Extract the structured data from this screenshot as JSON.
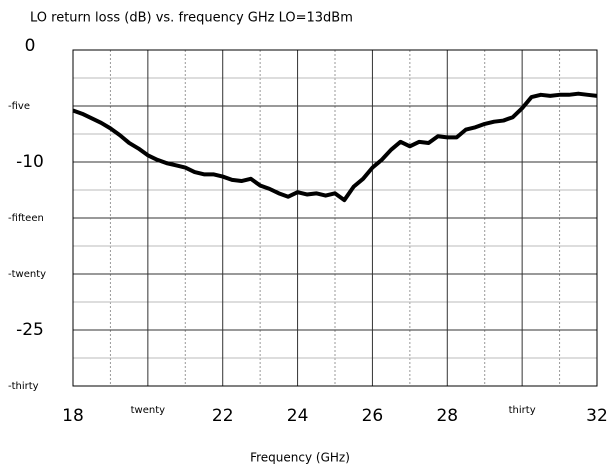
{
  "chart_data": {
    "type": "line",
    "title": "LO return loss (dB) vs. frequency GHz LO=13dBm",
    "x_label": "Frequency (GHz)",
    "x": [
      18,
      18.25,
      18.5,
      18.75,
      19,
      19.25,
      19.5,
      19.75,
      20,
      20.25,
      20.5,
      20.75,
      21,
      21.25,
      21.5,
      21.75,
      22,
      22.25,
      22.5,
      22.75,
      23,
      23.25,
      23.5,
      23.75,
      24,
      24.25,
      24.5,
      24.75,
      25,
      25.25,
      25.5,
      25.75,
      26,
      26.25,
      26.5,
      26.75,
      27,
      27.25,
      27.5,
      27.75,
      28,
      28.25,
      28.5,
      28.75,
      29,
      29.25,
      29.5,
      29.75,
      30,
      30.25,
      30.5,
      30.75,
      31,
      31.25,
      31.5,
      31.75,
      32
    ],
    "series": [
      {
        "name": "LO return loss",
        "color": "#000000",
        "values": [
          -5.4,
          -5.7,
          -6.1,
          -6.5,
          -7.0,
          -7.6,
          -8.3,
          -8.8,
          -9.4,
          -9.8,
          -10.1,
          -10.3,
          -10.5,
          -10.9,
          -11.1,
          -11.1,
          -11.3,
          -11.6,
          -11.7,
          -11.5,
          -12.1,
          -12.4,
          -12.8,
          -13.1,
          -12.7,
          -12.9,
          -12.8,
          -13.0,
          -12.8,
          -13.4,
          -12.2,
          -11.5,
          -10.5,
          -9.8,
          -8.9,
          -8.2,
          -8.6,
          -8.2,
          -8.3,
          -7.7,
          -7.8,
          -7.8,
          -7.1,
          -6.9,
          -6.6,
          -6.4,
          -6.3,
          -6.0,
          -5.2,
          -4.2,
          -4.0,
          -4.1,
          -4.0,
          -4.0,
          -3.9,
          -4.0,
          -4.1
        ]
      }
    ],
    "xlim": [
      18,
      32
    ],
    "xticks": [
      18,
      {
        "value": 20,
        "label": "twenty"
      },
      22,
      24,
      26,
      28,
      {
        "value": 30,
        "label": "thirty"
      },
      32
    ],
    "minor_xticks": [
      19,
      21,
      23,
      25,
      27,
      29,
      31
    ],
    "ylim": [
      -30,
      0
    ],
    "yticks": [
      0,
      {
        "value": -5,
        "label": "-five"
      },
      -10,
      {
        "value": -15,
        "label": "-fifteen"
      },
      {
        "value": -20,
        "label": "-twenty"
      },
      -25,
      {
        "value": -30,
        "label": "-thirty"
      }
    ],
    "minor_yticks": [
      -2.5,
      -7.5,
      -12.5,
      -17.5,
      -22.5,
      -27.5
    ],
    "grid": true
  }
}
